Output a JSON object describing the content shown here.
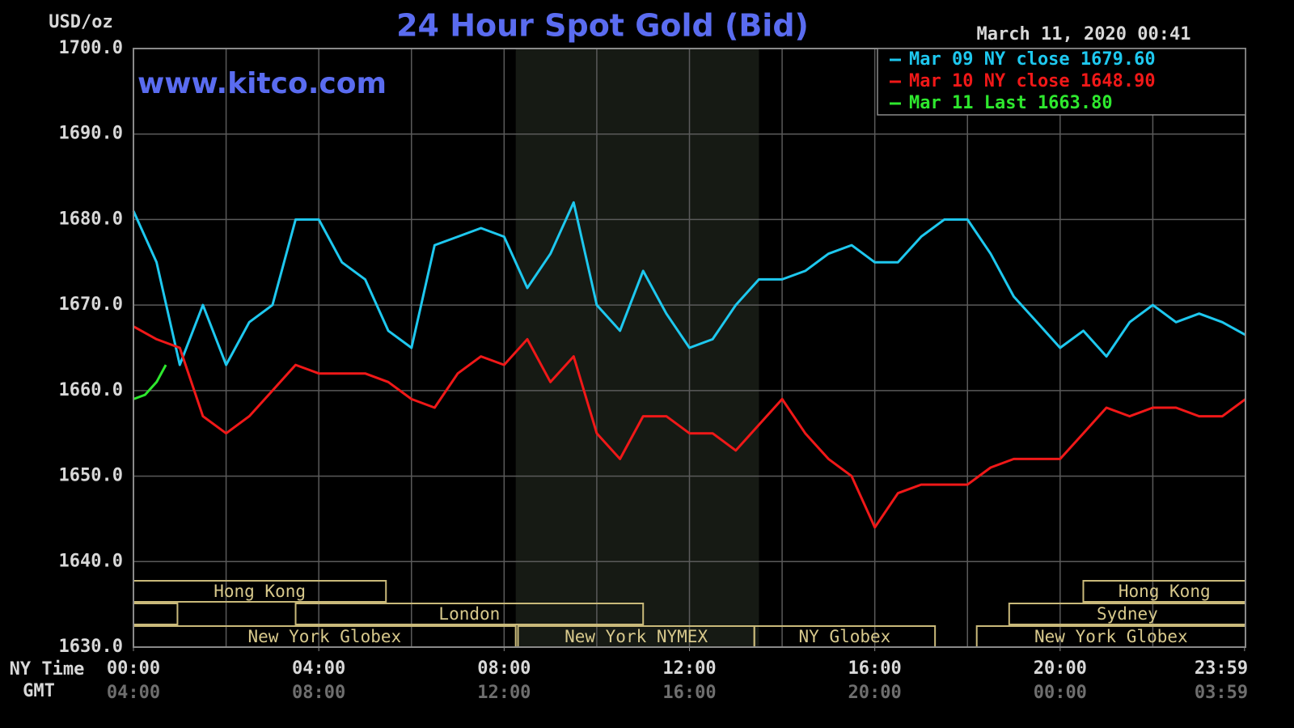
{
  "chart_data": {
    "type": "line",
    "title": "24 Hour Spot Gold (Bid)",
    "timestamp": "March 11, 2020 00:41",
    "watermark": "www.kitco.com",
    "ylabel": "USD/oz",
    "xlabel": "NY Time",
    "xlabel2": "GMT",
    "xlim": [
      0,
      24
    ],
    "ylim": [
      1630,
      1700
    ],
    "yticks": [
      {
        "value": 1630,
        "label": "1630.0"
      },
      {
        "value": 1640,
        "label": "1640.0"
      },
      {
        "value": 1650,
        "label": "1650.0"
      },
      {
        "value": 1660,
        "label": "1660.0"
      },
      {
        "value": 1670,
        "label": "1670.0"
      },
      {
        "value": 1680,
        "label": "1680.0"
      },
      {
        "value": 1690,
        "label": "1690.0"
      },
      {
        "value": 1700,
        "label": "1700.0"
      }
    ],
    "xticks": [
      {
        "value": 0,
        "label": "00:00"
      },
      {
        "value": 4,
        "label": "04:00"
      },
      {
        "value": 8,
        "label": "08:00"
      },
      {
        "value": 12,
        "label": "12:00"
      },
      {
        "value": 16,
        "label": "16:00"
      },
      {
        "value": 20,
        "label": "20:00"
      },
      {
        "value": 23.98,
        "label": "23:59"
      }
    ],
    "xticks2": [
      {
        "value": 0,
        "label": "04:00"
      },
      {
        "value": 4,
        "label": "08:00"
      },
      {
        "value": 8,
        "label": "12:00"
      },
      {
        "value": 12,
        "label": "16:00"
      },
      {
        "value": 16,
        "label": "20:00"
      },
      {
        "value": 20,
        "label": "00:00"
      },
      {
        "value": 23.98,
        "label": "03:59"
      }
    ],
    "xgrid": [
      2,
      4,
      6,
      8,
      10,
      12,
      14,
      16,
      18,
      20,
      22
    ],
    "grid": true,
    "shaded": [
      8.25,
      13.5
    ],
    "legend": "upper right",
    "x": [
      0,
      0.5,
      1,
      1.5,
      2,
      2.5,
      3,
      3.5,
      4,
      4.5,
      5,
      5.5,
      6,
      6.5,
      7,
      7.5,
      8,
      8.5,
      9,
      9.5,
      10,
      10.5,
      11,
      11.5,
      12,
      12.5,
      13,
      13.5,
      14,
      14.5,
      15,
      15.5,
      16,
      16.5,
      17,
      17.5,
      18,
      18.5,
      19,
      19.5,
      20,
      20.5,
      21,
      21.5,
      22,
      22.5,
      23,
      23.5,
      24
    ],
    "series": [
      {
        "name": "Mar 09 NY close 1679.60",
        "color": "#1ec8ef",
        "values": [
          1681,
          1675,
          1663,
          1670,
          1663,
          1668,
          1670,
          1680,
          1680,
          1675,
          1673,
          1667,
          1665,
          1677,
          1678,
          1679,
          1678,
          1672,
          1676,
          1682,
          1670,
          1667,
          1674,
          1669,
          1665,
          1666,
          1670,
          1673,
          1673,
          1674,
          1676,
          1677,
          1675,
          1675,
          1678,
          1680,
          1680,
          1676,
          1671,
          1668,
          1665,
          1667,
          1664,
          1668,
          1670,
          1668,
          1669,
          1668,
          1666.5
        ]
      },
      {
        "name": "Mar 10 NY close 1648.90",
        "color": "#f01818",
        "values": [
          1667.5,
          1666,
          1665,
          1657,
          1655,
          1657,
          1660,
          1663,
          1662,
          1662,
          1662,
          1661,
          1659,
          1658,
          1662,
          1664,
          1663,
          1666,
          1661,
          1664,
          1655,
          1652,
          1657,
          1657,
          1655,
          1655,
          1653,
          1656,
          1659,
          1655,
          1652,
          1650,
          1644,
          1648,
          1649,
          1649,
          1649,
          1651,
          1652,
          1652,
          1652,
          1655,
          1658,
          1657,
          1658,
          1658,
          1657,
          1657,
          1659
        ]
      },
      {
        "name": "Mar 11 Last 1663.80",
        "color": "#2ee82e",
        "x": [
          0,
          0.25,
          0.5,
          0.7
        ],
        "values": [
          1659,
          1659.5,
          1661,
          1663
        ]
      }
    ],
    "sessions": [
      {
        "name": "Hong Kong",
        "start": 0,
        "end": 5.45,
        "row": 0
      },
      {
        "name": "Hong Kong",
        "start": 20.5,
        "end": 24,
        "row": 0
      },
      {
        "name": null,
        "start": 0,
        "end": 0.95,
        "row": 1
      },
      {
        "name": "London",
        "start": 3.5,
        "end": 11,
        "row": 1
      },
      {
        "name": "Sydney",
        "start": 18.9,
        "end": 24,
        "row": 1
      },
      {
        "name": "New York Globex",
        "start": 0,
        "end": 8.25,
        "row": 2
      },
      {
        "name": "New York NYMEX",
        "start": 8.3,
        "end": 13.4,
        "row": 2
      },
      {
        "name": "NY Globex",
        "start": 13.4,
        "end": 17.3,
        "row": 2
      },
      {
        "name": "New York Globex",
        "start": 18.2,
        "end": 24,
        "row": 2
      }
    ]
  }
}
